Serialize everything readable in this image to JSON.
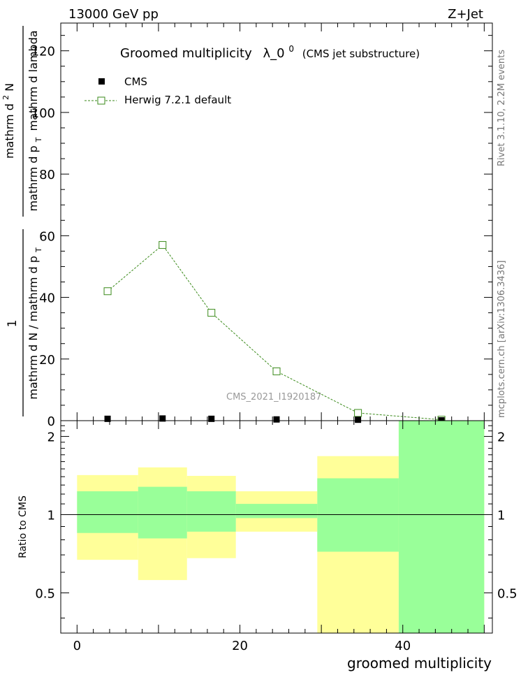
{
  "header": {
    "energy_label": "13000 GeV pp",
    "process_label": "Z+Jet"
  },
  "side_labels": {
    "rivet": "Rivet 3.1.10,  2.2M events",
    "mcplots": "mcplots.cern.ch [arXiv:1306.3436]"
  },
  "chart_data": [
    {
      "type": "line",
      "panel": "main",
      "title_main": "Groomed multiplicity",
      "title_symbol": "λ_0",
      "title_sup": "0",
      "title_note": "(CMS jet substructure)",
      "watermark": "CMS_2021_I1920187",
      "ylabel": {
        "frac_num": "1",
        "frac_den": "mathrm d N / mathrm d p",
        "frac_den_sub": "T",
        "deriv_num": "mathrm d",
        "deriv_num_sup": "2",
        "deriv_num_tail": "N",
        "deriv_den": "mathrm d p",
        "deriv_den_sub": "T",
        "deriv_den_tail": "mathrm d lambda"
      },
      "xlim": [
        -2,
        51
      ],
      "ylim": [
        0,
        129
      ],
      "yticks": [
        "0",
        "20",
        "40",
        "60",
        "80",
        "100",
        "120"
      ],
      "bin_edges": [
        0,
        7.5,
        13.5,
        19.5,
        29.5,
        39.5,
        50
      ],
      "series": [
        {
          "name": "CMS",
          "color": "#000000",
          "marker": "filled-square",
          "x": [
            3.75,
            10.5,
            16.5,
            24.5,
            34.5,
            44.75
          ],
          "values": [
            0.6,
            0.7,
            0.6,
            0.4,
            0.3,
            0.1
          ]
        },
        {
          "name": "Herwig 7.2.1 default",
          "color": "#3a8a1a",
          "marker": "open-square",
          "line": "dashed",
          "x": [
            3.75,
            10.5,
            16.5,
            24.5,
            34.5,
            44.75
          ],
          "values": [
            42,
            57,
            35,
            16,
            2.5,
            0.3
          ]
        }
      ]
    },
    {
      "type": "band",
      "panel": "ratio",
      "ylabel": "Ratio to CMS",
      "xlabel": "groomed multiplicity",
      "xlim": [
        -2,
        51
      ],
      "ylim": [
        0.35,
        2.3
      ],
      "scale": "log",
      "xticks": [
        "0",
        "20",
        "40"
      ],
      "yticks": [
        "0.5",
        "1",
        "2"
      ],
      "reference": 1,
      "bin_edges": [
        0,
        7.5,
        13.5,
        19.5,
        29.5,
        39.5,
        50
      ],
      "bands": [
        {
          "name": "2-sigma",
          "color": "#ffff99",
          "low": [
            0.67,
            0.56,
            0.68,
            0.86,
            0.35,
            0.35
          ],
          "high": [
            1.42,
            1.52,
            1.41,
            1.23,
            1.68,
            2.3
          ]
        },
        {
          "name": "1-sigma",
          "color": "#99ff99",
          "low": [
            0.85,
            0.81,
            0.86,
            0.97,
            0.72,
            0.35
          ],
          "high": [
            1.23,
            1.28,
            1.23,
            1.1,
            1.38,
            2.3
          ]
        }
      ]
    }
  ]
}
